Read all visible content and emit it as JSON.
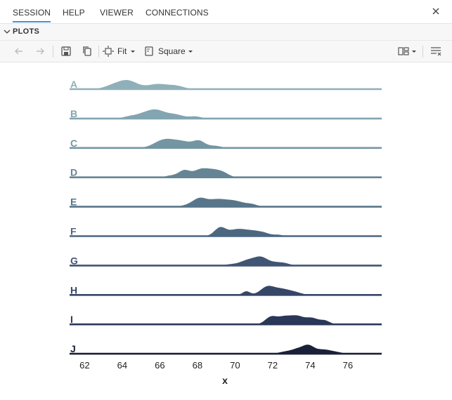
{
  "tabs": [
    {
      "label": "SESSION",
      "active": true
    },
    {
      "label": "HELP",
      "active": false
    },
    {
      "label": "VIEWER",
      "active": false
    },
    {
      "label": "CONNECTIONS",
      "active": false
    }
  ],
  "plots_header": {
    "label": "PLOTS"
  },
  "toolbar": {
    "zoom_label": "Fit",
    "aspect_label": "Square"
  },
  "icons": [
    "close-icon",
    "chevron-down-icon",
    "back-arrow-icon",
    "forward-arrow-icon",
    "save-icon",
    "copy-icon",
    "zoom-fit-icon",
    "aspect-ratio-icon",
    "layout-grid-icon",
    "clear-plots-icon"
  ],
  "chart_data": {
    "type": "ridgeline",
    "title": "",
    "xlabel": "x",
    "ylabel": "",
    "xlim": [
      61.2,
      77.8
    ],
    "xticks": [
      62,
      64,
      66,
      68,
      70,
      72,
      74,
      76
    ],
    "colors": {
      "top": "#8fb0b9",
      "bottom": "#1a2038"
    },
    "series": [
      {
        "name": "A",
        "color": "#8fb0b9",
        "peaks": [
          [
            63.5,
            0.35,
            0.45
          ],
          [
            64.3,
            0.9,
            0.5
          ],
          [
            65.9,
            0.55,
            0.55
          ],
          [
            66.9,
            0.3,
            0.4
          ]
        ]
      },
      {
        "name": "B",
        "color": "#82a5b1",
        "peaks": [
          [
            64.4,
            0.25,
            0.35
          ],
          [
            65.1,
            0.45,
            0.4
          ],
          [
            65.8,
            1.0,
            0.45
          ],
          [
            66.8,
            0.5,
            0.45
          ],
          [
            67.9,
            0.25,
            0.3
          ]
        ]
      },
      {
        "name": "C",
        "color": "#7496a3",
        "peaks": [
          [
            66.2,
            0.9,
            0.5
          ],
          [
            67.2,
            0.75,
            0.55
          ],
          [
            68.1,
            0.7,
            0.3
          ],
          [
            68.9,
            0.25,
            0.35
          ]
        ]
      },
      {
        "name": "D",
        "color": "#658595",
        "peaks": [
          [
            66.6,
            0.2,
            0.3
          ],
          [
            67.3,
            0.8,
            0.3
          ],
          [
            68.1,
            0.7,
            0.35
          ],
          [
            68.8,
            0.85,
            0.45
          ],
          [
            69.4,
            0.3,
            0.3
          ]
        ]
      },
      {
        "name": "E",
        "color": "#58768a",
        "peaks": [
          [
            67.5,
            0.15,
            0.35
          ],
          [
            68.1,
            0.75,
            0.35
          ],
          [
            69.0,
            0.7,
            0.5
          ],
          [
            70.0,
            0.55,
            0.5
          ],
          [
            70.9,
            0.2,
            0.3
          ]
        ]
      },
      {
        "name": "F",
        "color": "#4c6780",
        "peaks": [
          [
            69.2,
            0.95,
            0.3
          ],
          [
            70.1,
            0.75,
            0.45
          ],
          [
            71.0,
            0.55,
            0.45
          ],
          [
            71.6,
            0.2,
            0.3
          ],
          [
            72.3,
            0.15,
            0.25
          ]
        ]
      },
      {
        "name": "G",
        "color": "#415574",
        "peaks": [
          [
            69.8,
            0.15,
            0.35
          ],
          [
            70.7,
            0.7,
            0.4
          ],
          [
            71.4,
            1.0,
            0.35
          ],
          [
            72.1,
            0.3,
            0.3
          ],
          [
            72.6,
            0.3,
            0.3
          ]
        ]
      },
      {
        "name": "H",
        "color": "#364667",
        "peaks": [
          [
            70.6,
            0.45,
            0.2
          ],
          [
            71.7,
            0.95,
            0.35
          ],
          [
            72.4,
            0.65,
            0.4
          ],
          [
            73.1,
            0.35,
            0.4
          ]
        ]
      },
      {
        "name": "I",
        "color": "#2a3758",
        "peaks": [
          [
            71.9,
            0.75,
            0.3
          ],
          [
            72.6,
            0.75,
            0.35
          ],
          [
            73.3,
            0.8,
            0.35
          ],
          [
            74.1,
            0.65,
            0.35
          ],
          [
            74.8,
            0.35,
            0.25
          ]
        ]
      },
      {
        "name": "J",
        "color": "#1a2038",
        "peaks": [
          [
            72.6,
            0.2,
            0.3
          ],
          [
            73.3,
            0.55,
            0.35
          ],
          [
            73.9,
            0.9,
            0.3
          ],
          [
            74.7,
            0.5,
            0.4
          ],
          [
            75.4,
            0.15,
            0.3
          ]
        ]
      }
    ]
  }
}
